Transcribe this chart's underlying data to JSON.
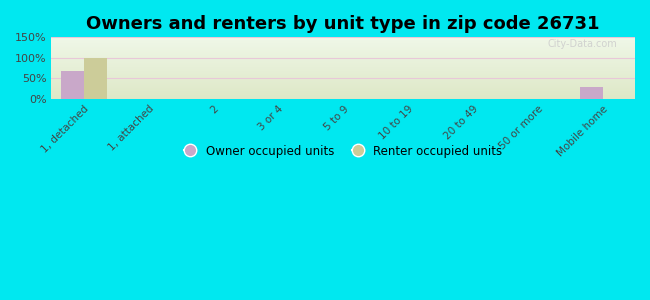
{
  "title": "Owners and renters by unit type in zip code 26731",
  "categories": [
    "1, detached",
    "1, attached",
    "2",
    "3 or 4",
    "5 to 9",
    "10 to 19",
    "20 to 49",
    "50 or more",
    "Mobile home"
  ],
  "owner_values": [
    68,
    0,
    0,
    0,
    0,
    0,
    0,
    0,
    28
  ],
  "renter_values": [
    100,
    0,
    0,
    0,
    0,
    0,
    0,
    0,
    0
  ],
  "owner_color": "#c9a8c9",
  "renter_color": "#cccc99",
  "ylim": [
    0,
    150
  ],
  "yticks": [
    0,
    50,
    100,
    150
  ],
  "ytick_labels": [
    "0%",
    "50%",
    "100%",
    "150%"
  ],
  "bg_color": "#00e8f0",
  "bar_width": 0.35,
  "legend_owner": "Owner occupied units",
  "legend_renter": "Renter occupied units",
  "title_fontsize": 13,
  "watermark": "City-Data.com",
  "grid_color": "#e8c8d8",
  "plot_bg_top": "#f0f5e8",
  "plot_bg_bottom": "#dde8c8"
}
